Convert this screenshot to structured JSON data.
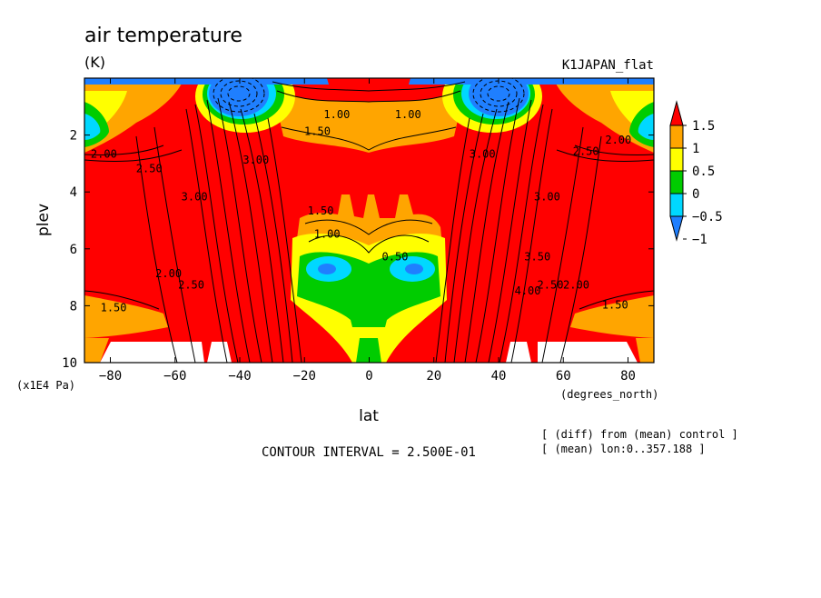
{
  "chart_data": {
    "type": "contour",
    "title": "air temperature",
    "units": "(K)",
    "run_label": "K1JAPAN_flat",
    "xlabel": "lat",
    "xunits": "(degrees_north)",
    "ylabel": "plev",
    "yunits": "(x1E4 Pa)",
    "xlim": [
      -88,
      88
    ],
    "ylim": [
      0,
      10
    ],
    "y_inverted": true,
    "x_ticks": [
      -80,
      -60,
      -40,
      -20,
      0,
      20,
      40,
      60,
      80
    ],
    "y_ticks": [
      2,
      4,
      6,
      8,
      10
    ],
    "colorbar": {
      "levels": [
        -1,
        -0.5,
        0,
        0.5,
        1,
        1.5
      ],
      "tick_labels": [
        "−1",
        "−0.5",
        "0",
        "0.5",
        "1",
        "1.5"
      ],
      "colors": [
        "#1f7fff",
        "#00d8ff",
        "#00cc00",
        "#ffff00",
        "#ffa500",
        "#ff0000"
      ]
    },
    "contour_labels": [
      {
        "text": "1.00",
        "x": -10,
        "y": 1.4
      },
      {
        "text": "1.00",
        "x": 12,
        "y": 1.4
      },
      {
        "text": "1.50",
        "x": -16,
        "y": 2.0
      },
      {
        "text": "2.00",
        "x": -82,
        "y": 2.8
      },
      {
        "text": "2.50",
        "x": -68,
        "y": 3.3
      },
      {
        "text": "3.00",
        "x": -54,
        "y": 4.3
      },
      {
        "text": "3.00",
        "x": -35,
        "y": 3.0
      },
      {
        "text": "3.00",
        "x": 35,
        "y": 2.8
      },
      {
        "text": "2.50",
        "x": 67,
        "y": 2.7
      },
      {
        "text": "2.00",
        "x": 77,
        "y": 2.3
      },
      {
        "text": "3.00",
        "x": 55,
        "y": 4.3
      },
      {
        "text": "1.50",
        "x": -15,
        "y": 4.8
      },
      {
        "text": "1.00",
        "x": -13,
        "y": 5.6
      },
      {
        "text": "0.50",
        "x": 8,
        "y": 6.4
      },
      {
        "text": "2.00",
        "x": -62,
        "y": 7.0
      },
      {
        "text": "2.50",
        "x": -55,
        "y": 7.4
      },
      {
        "text": "1.50",
        "x": -79,
        "y": 8.2
      },
      {
        "text": "1.50",
        "x": 76,
        "y": 8.1
      },
      {
        "text": "2.00",
        "x": 64,
        "y": 7.4
      },
      {
        "text": "2.50",
        "x": 56,
        "y": 7.4
      },
      {
        "text": "4.00",
        "x": 49,
        "y": 7.6
      },
      {
        "text": "3.50",
        "x": 52,
        "y": 6.4
      }
    ]
  },
  "contour_interval_text": "CONTOUR INTERVAL = 2.500E-01",
  "notes": [
    "[ (diff) from (mean) control ]",
    "[ (mean) lon:0..357.188 ]"
  ]
}
